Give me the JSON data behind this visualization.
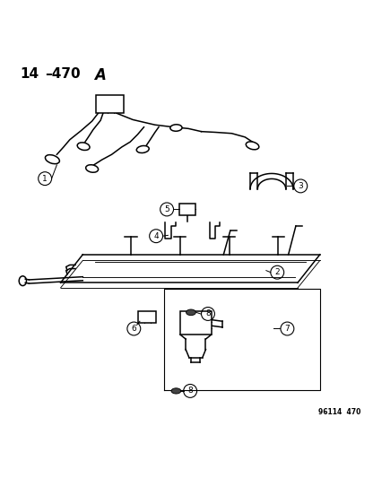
{
  "bg_color": "#ffffff",
  "fg_color": "#000000",
  "fig_width": 4.16,
  "fig_height": 5.33,
  "dpi": 100,
  "watermark": "96114  470",
  "title_parts": [
    "14",
    "–470",
    "A"
  ]
}
